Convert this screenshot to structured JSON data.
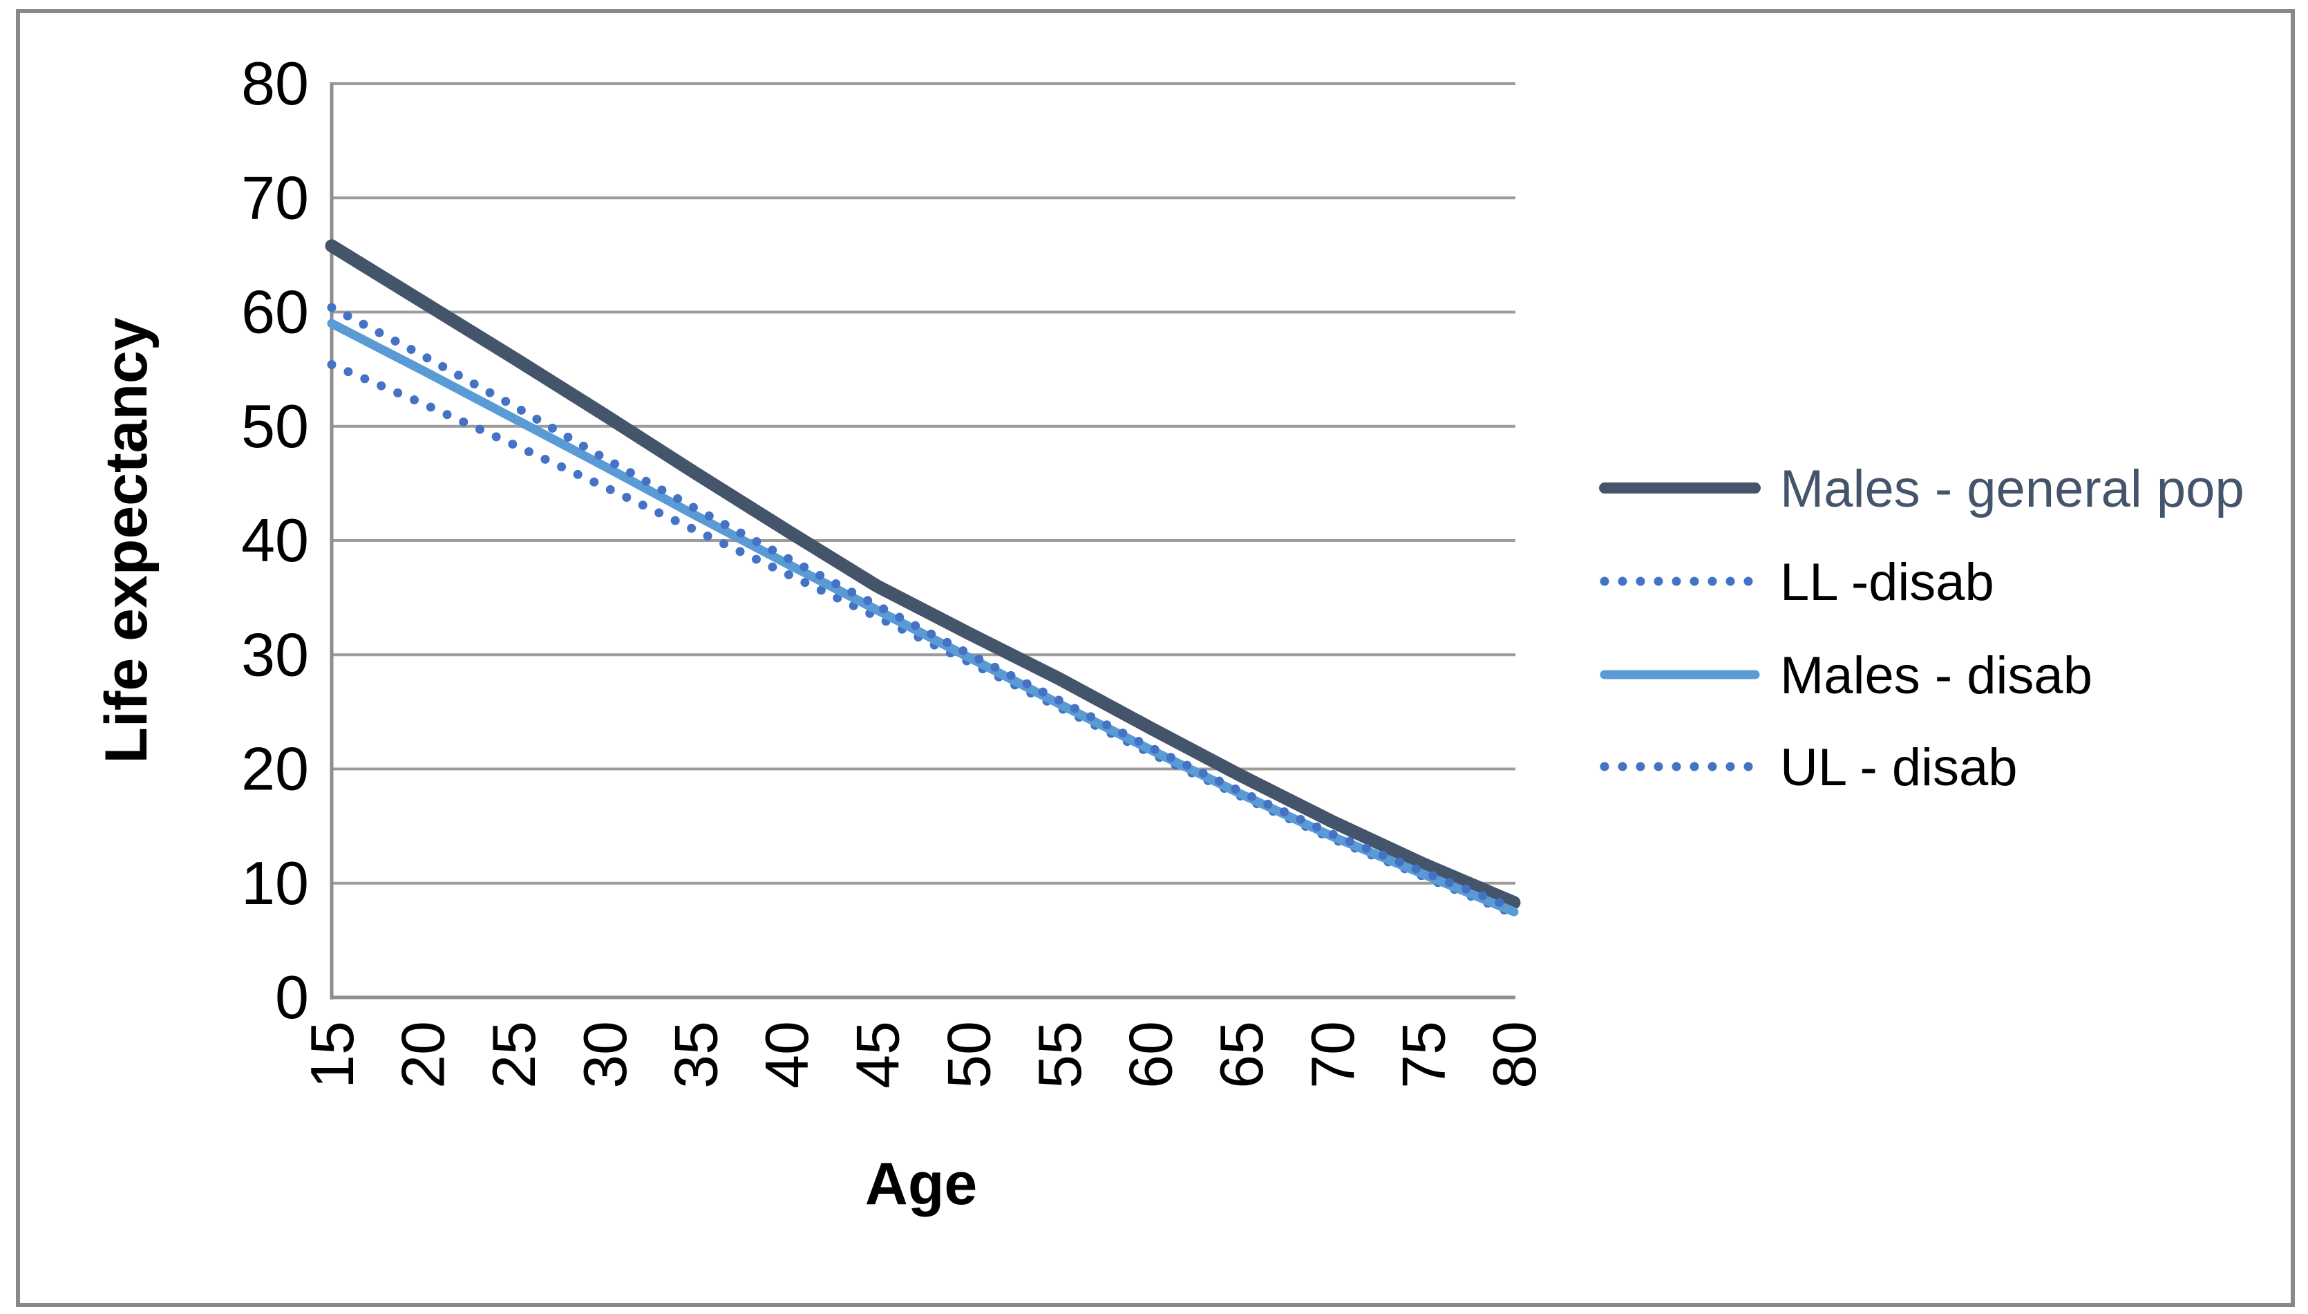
{
  "chart_data": {
    "type": "line",
    "title": "",
    "xlabel": "Age",
    "ylabel": "Life expectancy",
    "x_categories": [
      "15",
      "20",
      "25",
      "30",
      "35",
      "40",
      "45",
      "50",
      "55",
      "60",
      "65",
      "70",
      "75",
      "80"
    ],
    "y_ticks": [
      "0",
      "10",
      "20",
      "30",
      "40",
      "50",
      "60",
      "70",
      "80"
    ],
    "ylim": [
      0,
      80
    ],
    "grid": "horizontal-only",
    "legend_position": "right-middle",
    "series": [
      {
        "name": "Males - general pop",
        "style": "solid",
        "color": "#44546A",
        "label_color": "#44546A",
        "values": [
          65.8,
          60.9,
          56.0,
          51.0,
          45.9,
          40.9,
          36.0,
          31.9,
          27.9,
          23.6,
          19.4,
          15.4,
          11.7,
          8.3
        ]
      },
      {
        "name": "LL -disab",
        "style": "dotted",
        "color": "#4472C4",
        "label_color": "#000000",
        "values": [
          55.4,
          52.0,
          48.4,
          44.7,
          40.9,
          37.1,
          33.3,
          29.4,
          25.4,
          21.4,
          17.6,
          13.9,
          10.6,
          7.3
        ]
      },
      {
        "name": "Males - disab",
        "style": "solid",
        "color": "#5B9BD5",
        "label_color": "#000000",
        "values": [
          59.0,
          54.9,
          50.7,
          46.5,
          42.2,
          38.0,
          33.9,
          29.8,
          25.7,
          21.7,
          17.8,
          14.1,
          10.8,
          7.5
        ]
      },
      {
        "name": "UL - disab",
        "style": "dotted",
        "color": "#4472C4",
        "label_color": "#000000",
        "values": [
          60.4,
          56.2,
          51.8,
          47.2,
          42.8,
          38.5,
          34.3,
          30.1,
          26.0,
          21.9,
          18.0,
          14.3,
          11.0,
          7.8
        ]
      }
    ]
  },
  "colors": {
    "gridline": "#9C9C9C",
    "axis_line": "#8E8E8E",
    "outer_frame": "#898989",
    "background": "#FFFFFF"
  }
}
